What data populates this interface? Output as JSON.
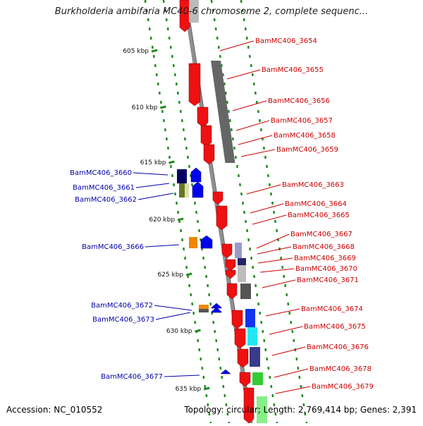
{
  "title": "Burkholderia ambifaria MC40-6 chromosome 2, complete sequenc...",
  "footer": {
    "accession": "Accession: NC_010552",
    "topology": "Topology: circular; Length: 2,769,414 bp; Genes: 2,391"
  },
  "colors": {
    "forward_label": "#0000aa",
    "reverse_label": "#cc0000",
    "backbone": "#8f8f8f",
    "tick": "#228b22"
  },
  "kbp_ticks": [
    "605 kbp",
    "610 kbp",
    "615 kbp",
    "620 kbp",
    "625 kbp",
    "630 kbp",
    "635 kbp"
  ],
  "reverse_genes": [
    "BamMC406_3654",
    "BamMC406_3655",
    "BamMC406_3656",
    "BamMC406_3657",
    "BamMC406_3658",
    "BamMC406_3659",
    "BamMC406_3663",
    "BamMC406_3664",
    "BamMC406_3665",
    "BamMC406_3667",
    "BamMC406_3668",
    "BamMC406_3669",
    "BamMC406_3670",
    "BamMC406_3671",
    "BamMC406_3674",
    "BamMC406_3675",
    "BamMC406_3676",
    "BamMC406_3678",
    "BamMC406_3679"
  ],
  "forward_genes": [
    "BamMC406_3660",
    "BamMC406_3661",
    "BamMC406_3662",
    "BamMC406_3666",
    "BamMC406_3672",
    "BamMC406_3673",
    "BamMC406_3677"
  ]
}
